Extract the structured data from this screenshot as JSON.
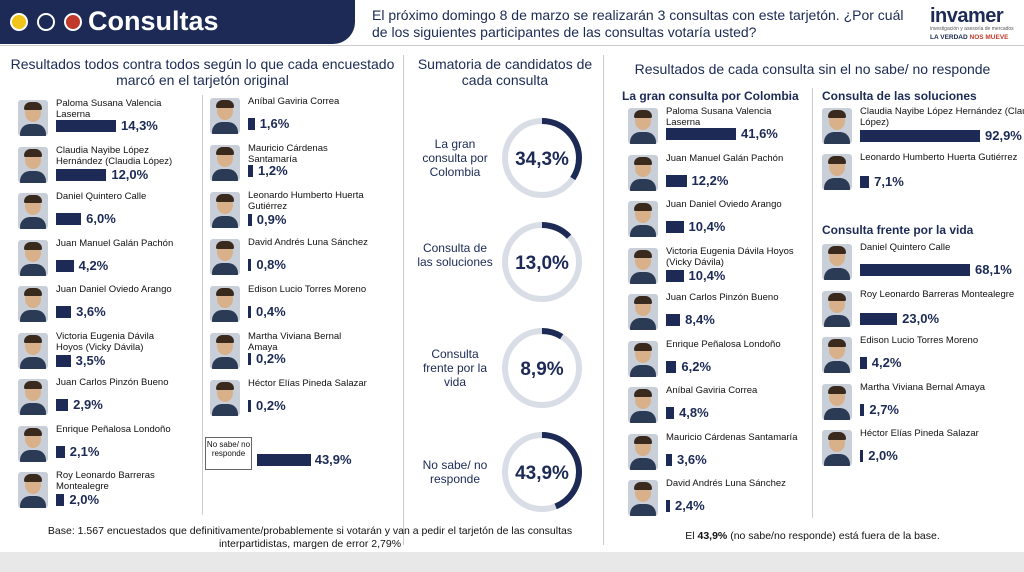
{
  "header": {
    "title": "Consultas",
    "question": "El próximo domingo 8 de marzo se realizarán 3 consultas con este tarjetón. ¿Por cuál de los siguientes participantes de las consultas votaría usted?",
    "dot_colors": [
      "#f0c419",
      "#1c2a55",
      "#c0392b"
    ],
    "logo_name": "invamer",
    "logo_sub": "investigación y asesoría de mercados",
    "logo_tag_a": "LA VERDAD",
    "logo_tag_b": "NOS MUEVE"
  },
  "left": {
    "title": "Resultados todos contra todos según lo que cada encuestado marcó en el tarjetón original",
    "footnote": "Base: 1.567 encuestados que definitivamente/probablemente si votarán y van a pedir el tarjetón de las consultas interpartidistas, margen de error 2,79%",
    "no_sabe_label": "No sabe/ no responde",
    "no_sabe_value": "43,9%"
  },
  "middle": {
    "title": "Sumatoria de candidatos de cada consulta"
  },
  "right": {
    "title": "Resultados de cada consulta sin el no sabe/ no responde",
    "gran": "La gran consulta por Colombia",
    "soluciones": "Consulta de las soluciones",
    "frente": "Consulta frente por la vida",
    "footnote_a": "El ",
    "footnote_b": "43,9%",
    "footnote_c": " (no sabe/no responde) está fuera de la base."
  },
  "chart_data": [
    {
      "type": "bar",
      "title": "Resultados todos contra todos según lo que cada encuestado marcó en el tarjetón original",
      "categories": [
        "Paloma Susana Valencia Laserna",
        "Claudia Nayibe López Hernández (Claudia López)",
        "Daniel Quintero Calle",
        "Juan Manuel Galán Pachón",
        "Juan Daniel Oviedo Arango",
        "Victoria Eugenia Dávila Hoyos (Vicky Dávila)",
        "Juan Carlos Pinzón Bueno",
        "Enrique Peñalosa Londoño",
        "Roy Leonardo Barreras Montealegre",
        "Aníbal Gaviria Correa",
        "Mauricio Cárdenas Santamaría",
        "Leonardo Humberto Huerta Gutiérrez",
        "David Andrés Luna Sánchez",
        "Edison Lucio Torres Moreno",
        "Martha Viviana Bernal Amaya",
        "Héctor Elías Pineda Salazar",
        "No sabe/ no responde"
      ],
      "values": [
        14.3,
        12.0,
        6.0,
        4.2,
        3.6,
        3.5,
        2.9,
        2.1,
        2.0,
        1.6,
        1.2,
        0.9,
        0.8,
        0.4,
        0.2,
        0.2,
        43.9
      ],
      "labels": [
        "14,3%",
        "12,0%",
        "6,0%",
        "4,2%",
        "3,6%",
        "3,5%",
        "2,9%",
        "2,1%",
        "2,0%",
        "1,6%",
        "1,2%",
        "0,9%",
        "0,8%",
        "0,4%",
        "0,2%",
        "0,2%",
        "43,9%"
      ]
    },
    {
      "type": "pie",
      "title": "Sumatoria de candidatos de cada consulta",
      "categories": [
        "La gran consulta por Colombia",
        "Consulta de las soluciones",
        "Consulta frente por la vida",
        "No sabe/ no responde"
      ],
      "values": [
        34.3,
        13.0,
        8.9,
        43.9
      ],
      "labels": [
        "34,3%",
        "13,0%",
        "8,9%",
        "43,9%"
      ]
    },
    {
      "type": "bar",
      "title": "La gran consulta por Colombia",
      "categories": [
        "Paloma Susana Valencia Laserna",
        "Juan Manuel Galán Pachón",
        "Juan Daniel Oviedo Arango",
        "Victoria Eugenia Dávila Hoyos (Vicky Dávila)",
        "Juan Carlos Pinzón Bueno",
        "Enrique Peñalosa Londoño",
        "Aníbal Gaviria Correa",
        "Mauricio Cárdenas Santamaría",
        "David Andrés Luna Sánchez"
      ],
      "values": [
        41.6,
        12.2,
        10.4,
        10.4,
        8.4,
        6.2,
        4.8,
        3.6,
        2.4
      ],
      "labels": [
        "41,6%",
        "12,2%",
        "10,4%",
        "10,4%",
        "8,4%",
        "6,2%",
        "4,8%",
        "3,6%",
        "2,4%"
      ]
    },
    {
      "type": "bar",
      "title": "Consulta de las soluciones",
      "categories": [
        "Claudia Nayibe López Hernández (Claudia López)",
        "Leonardo Humberto Huerta Gutiérrez"
      ],
      "values": [
        92.9,
        7.1
      ],
      "labels": [
        "92,9%",
        "7,1%"
      ]
    },
    {
      "type": "bar",
      "title": "Consulta frente por la vida",
      "categories": [
        "Daniel Quintero Calle",
        "Roy Leonardo Barreras Montealegre",
        "Edison Lucio Torres Moreno",
        "Martha Viviana Bernal Amaya",
        "Héctor Elías Pineda Salazar"
      ],
      "values": [
        68.1,
        23.0,
        4.2,
        2.7,
        2.0
      ],
      "labels": [
        "68,1%",
        "23,0%",
        "4,2%",
        "2,7%",
        "2,0%"
      ]
    }
  ]
}
